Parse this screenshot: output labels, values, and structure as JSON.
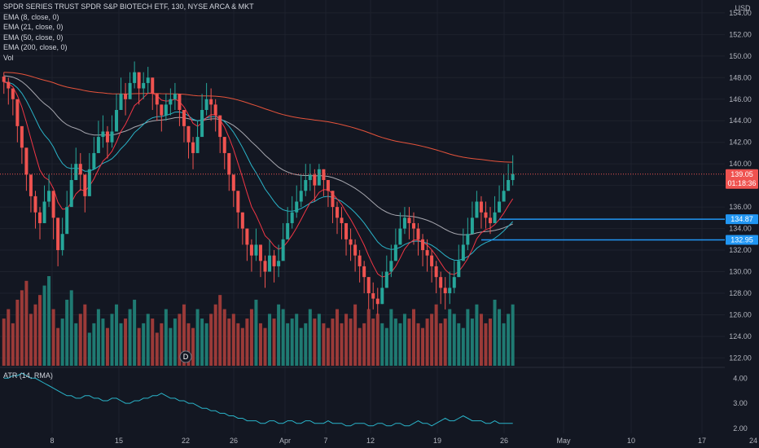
{
  "legend": {
    "title": "SPDR SERIES TRUST SPDR S&P BIOTECH ETF, 130, NYSE ARCA & MKT",
    "ema8": "EMA (8, close, 0)",
    "ema21": "EMA (21, close, 0)",
    "ema50": "EMA (50, close, 0)",
    "ema200": "EMA (200, close, 0)",
    "vol": "Vol"
  },
  "atr_legend": "ATR (14, RMA)",
  "currency": "USD",
  "dividend_marker": "D",
  "price_tags": {
    "last": "139.05",
    "countdown": "01:18:36",
    "level1": "134.87",
    "level2": "132.95"
  },
  "colors": {
    "background": "#131722",
    "up": "#26a69a",
    "down": "#ef5350",
    "vol_up": "#1f7a72",
    "vol_down": "#9b3a38",
    "ema8": "#f23645",
    "ema21": "#2ab4c9",
    "ema50": "#a8a8b0",
    "ema200": "#e5533b",
    "level_line": "#2196f3",
    "atr_line": "#2ab4c9",
    "grid": "#1e222d"
  },
  "chart_data": {
    "type": "candlestick",
    "price_axis": {
      "ticks": [
        154,
        152,
        150,
        148,
        146,
        144,
        142,
        140,
        138,
        136,
        134,
        132,
        130,
        128,
        126,
        124,
        122
      ],
      "ylim": [
        121.2,
        155.2
      ],
      "tick_labels": [
        "154.00",
        "152.00",
        "150.00",
        "148.00",
        "146.00",
        "144.00",
        "142.00",
        "140.00",
        "138.00",
        "136.00",
        "134.00",
        "132.00",
        "130.00",
        "128.00",
        "126.00",
        "124.00",
        "122.00"
      ]
    },
    "atr_axis": {
      "ticks": [
        4.0,
        3.0,
        2.0
      ],
      "tick_labels": [
        "4.00",
        "3.00",
        "2.00"
      ],
      "ylim": [
        1.8,
        4.4
      ]
    },
    "x_axis": {
      "labels": [
        "8",
        "15",
        "22",
        "26",
        "Apr",
        "7",
        "12",
        "19",
        "26",
        "May",
        "10",
        "17",
        "24"
      ]
    },
    "closes": [
      147.6,
      147.0,
      146.0,
      143.5,
      141.5,
      139.0,
      137.0,
      135.5,
      134.5,
      136.5,
      137.5,
      135.0,
      132.0,
      133.5,
      136.0,
      138.5,
      140.0,
      139.0,
      137.0,
      139.5,
      141.0,
      142.5,
      143.0,
      142.0,
      143.0,
      145.0,
      146.5,
      146.0,
      147.5,
      148.5,
      147.0,
      147.5,
      148.0,
      146.5,
      145.5,
      144.5,
      145.5,
      146.0,
      146.5,
      145.0,
      143.5,
      142.0,
      141.0,
      142.5,
      145.0,
      146.0,
      145.5,
      144.5,
      142.5,
      141.0,
      139.0,
      137.5,
      135.5,
      134.0,
      132.5,
      131.5,
      132.5,
      131.0,
      130.0,
      131.5,
      130.5,
      131.0,
      133.0,
      134.5,
      135.5,
      136.5,
      137.5,
      138.5,
      139.0,
      138.0,
      139.5,
      138.5,
      137.5,
      136.0,
      135.0,
      134.5,
      133.0,
      132.5,
      131.5,
      130.5,
      129.5,
      128.0,
      127.5,
      127.0,
      128.5,
      130.0,
      131.0,
      132.5,
      134.0,
      135.0,
      134.5,
      134.0,
      133.0,
      132.0,
      131.5,
      130.5,
      129.5,
      128.5,
      128.0,
      128.5,
      129.5,
      131.0,
      132.5,
      133.5,
      135.0,
      136.5,
      135.5,
      135.0,
      134.5,
      135.5,
      136.5,
      137.5,
      138.5,
      139.05
    ],
    "highs": [
      148.5,
      148.0,
      147.0,
      145.0,
      143.0,
      141.0,
      139.0,
      137.5,
      136.0,
      138.0,
      139.0,
      137.0,
      134.0,
      135.0,
      137.5,
      140.0,
      141.5,
      141.0,
      139.0,
      141.0,
      142.5,
      144.0,
      144.5,
      143.5,
      144.5,
      146.5,
      148.0,
      147.5,
      148.5,
      149.5,
      148.5,
      148.5,
      149.0,
      148.0,
      146.5,
      145.5,
      146.5,
      147.0,
      147.5,
      146.5,
      145.0,
      143.5,
      142.5,
      144.0,
      146.5,
      147.5,
      147.0,
      146.0,
      144.0,
      142.5,
      140.5,
      139.0,
      137.0,
      135.5,
      134.0,
      133.0,
      134.0,
      132.5,
      131.5,
      133.0,
      132.0,
      132.5,
      134.5,
      136.0,
      137.0,
      138.0,
      139.0,
      140.0,
      140.0,
      139.5,
      140.0,
      139.5,
      138.5,
      137.5,
      136.5,
      136.0,
      134.5,
      134.0,
      133.0,
      132.0,
      131.0,
      129.5,
      129.0,
      128.5,
      130.0,
      131.5,
      132.5,
      134.0,
      135.5,
      136.0,
      136.0,
      135.5,
      134.5,
      133.5,
      133.0,
      132.0,
      131.0,
      130.0,
      129.5,
      130.0,
      131.0,
      132.5,
      134.0,
      135.0,
      136.5,
      137.5,
      137.0,
      136.5,
      136.0,
      137.0,
      138.0,
      139.0,
      140.0,
      140.8
    ],
    "lows": [
      146.5,
      145.5,
      144.5,
      142.0,
      140.0,
      137.5,
      135.5,
      134.0,
      133.0,
      134.5,
      136.0,
      133.0,
      130.5,
      131.5,
      134.5,
      137.0,
      138.5,
      137.5,
      135.5,
      138.0,
      139.5,
      141.0,
      141.5,
      140.5,
      141.5,
      143.5,
      145.0,
      144.5,
      146.0,
      147.0,
      145.5,
      146.0,
      146.5,
      145.0,
      144.0,
      143.0,
      144.0,
      144.5,
      145.0,
      143.5,
      142.0,
      140.5,
      139.5,
      141.0,
      143.5,
      144.5,
      144.0,
      143.0,
      141.0,
      139.5,
      137.5,
      136.0,
      134.0,
      132.5,
      131.0,
      130.0,
      131.0,
      129.5,
      128.5,
      130.0,
      129.0,
      129.5,
      131.5,
      133.0,
      134.0,
      135.0,
      136.0,
      137.0,
      137.5,
      136.5,
      138.0,
      137.0,
      136.0,
      134.5,
      133.5,
      133.0,
      131.5,
      131.0,
      130.0,
      129.0,
      128.0,
      126.5,
      126.5,
      126.0,
      127.0,
      128.5,
      129.5,
      131.0,
      132.5,
      133.5,
      133.0,
      132.5,
      131.5,
      130.5,
      130.0,
      129.0,
      128.0,
      127.0,
      126.5,
      127.0,
      128.0,
      129.5,
      131.0,
      132.0,
      133.5,
      135.0,
      134.0,
      134.0,
      133.5,
      134.5,
      135.5,
      136.5,
      137.5,
      138.0
    ],
    "volumes": [
      10,
      12,
      9,
      14,
      16,
      18,
      11,
      13,
      15,
      17,
      19,
      12,
      8,
      10,
      14,
      16,
      9,
      11,
      13,
      7,
      9,
      12,
      10,
      8,
      11,
      13,
      9,
      10,
      12,
      14,
      8,
      9,
      11,
      10,
      7,
      9,
      12,
      8,
      10,
      11,
      13,
      9,
      8,
      12,
      10,
      9,
      11,
      13,
      15,
      12,
      10,
      11,
      9,
      8,
      10,
      12,
      14,
      9,
      8,
      11,
      10,
      13,
      12,
      9,
      10,
      11,
      8,
      9,
      12,
      10,
      11,
      9,
      8,
      10,
      12,
      9,
      11,
      10,
      13,
      8,
      9,
      12,
      10,
      11,
      9,
      8,
      12,
      10,
      9,
      11,
      10,
      12,
      9,
      8,
      10,
      11,
      13,
      9,
      10,
      12,
      11,
      9,
      8,
      12,
      10,
      13,
      11,
      9,
      10,
      14,
      12,
      9,
      11,
      13
    ],
    "atr": [
      4.0,
      4.0,
      4.1,
      4.1,
      4.2,
      4.1,
      4.0,
      4.0,
      3.9,
      3.8,
      3.7,
      3.6,
      3.5,
      3.4,
      3.3,
      3.3,
      3.2,
      3.2,
      3.3,
      3.3,
      3.2,
      3.2,
      3.1,
      3.1,
      3.2,
      3.2,
      3.1,
      3.0,
      3.0,
      3.1,
      3.1,
      3.2,
      3.2,
      3.3,
      3.3,
      3.4,
      3.3,
      3.2,
      3.2,
      3.1,
      3.1,
      3.0,
      3.0,
      2.9,
      2.8,
      2.8,
      2.7,
      2.7,
      2.6,
      2.6,
      2.5,
      2.5,
      2.4,
      2.4,
      2.3,
      2.3,
      2.3,
      2.2,
      2.2,
      2.3,
      2.3,
      2.2,
      2.2,
      2.3,
      2.3,
      2.2,
      2.2,
      2.3,
      2.3,
      2.2,
      2.2,
      2.2,
      2.3,
      2.2,
      2.2,
      2.2,
      2.1,
      2.1,
      2.2,
      2.2,
      2.2,
      2.1,
      2.1,
      2.2,
      2.2,
      2.1,
      2.1,
      2.2,
      2.2,
      2.1,
      2.1,
      2.2,
      2.3,
      2.2,
      2.2,
      2.1,
      2.2,
      2.3,
      2.4,
      2.3,
      2.3,
      2.4,
      2.5,
      2.4,
      2.3,
      2.3,
      2.3,
      2.2,
      2.2,
      2.3,
      2.2,
      2.2,
      2.2,
      2.2
    ],
    "levels": [
      134.87,
      132.95
    ],
    "last_price": 139.05
  }
}
